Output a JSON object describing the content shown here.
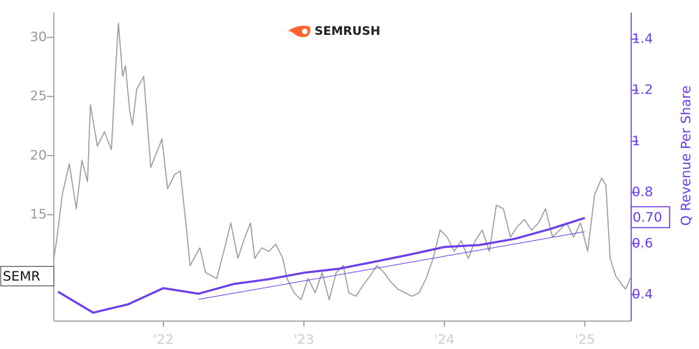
{
  "chart_data": {
    "type": "line",
    "title": "SEMRUSH",
    "y2label": "Q Revenue Per Share",
    "xlim": [
      2021.22,
      2025.33
    ],
    "xticks": [
      {
        "value": 2022,
        "label": "'22"
      },
      {
        "value": 2023,
        "label": "'23"
      },
      {
        "value": 2024,
        "label": "'24"
      },
      {
        "value": 2025,
        "label": "'25"
      }
    ],
    "ylim": [
      6,
      32.1
    ],
    "yticks": [
      15,
      20,
      25,
      30
    ],
    "y2lim": [
      0.296,
      1.504
    ],
    "y2ticks": [
      0.4,
      0.6,
      0.8,
      1.0,
      1.2,
      1.4
    ],
    "series": [
      {
        "name": "SEMR",
        "color": "#999999",
        "width": 1.5,
        "x": [
          2021.22,
          2021.24,
          2021.28,
          2021.33,
          2021.38,
          2021.42,
          2021.46,
          2021.48,
          2021.53,
          2021.58,
          2021.63,
          2021.66,
          2021.68,
          2021.71,
          2021.73,
          2021.76,
          2021.78,
          2021.81,
          2021.86,
          2021.91,
          2021.96,
          2021.99,
          2022.03,
          2022.08,
          2022.12,
          2022.16,
          2022.19,
          2022.26,
          2022.3,
          2022.38,
          2022.43,
          2022.48,
          2022.53,
          2022.58,
          2022.62,
          2022.65,
          2022.7,
          2022.75,
          2022.8,
          2022.85,
          2022.88,
          2022.93,
          2022.98,
          2023.03,
          2023.08,
          2023.13,
          2023.18,
          2023.23,
          2023.28,
          2023.32,
          2023.37,
          2023.42,
          2023.47,
          2023.52,
          2023.57,
          2023.62,
          2023.67,
          2023.72,
          2023.77,
          2023.82,
          2023.87,
          2023.92,
          2023.97,
          2024.02,
          2024.07,
          2024.12,
          2024.17,
          2024.22,
          2024.27,
          2024.32,
          2024.37,
          2024.42,
          2024.47,
          2024.52,
          2024.57,
          2024.62,
          2024.67,
          2024.72,
          2024.77,
          2024.82,
          2024.87,
          2024.92,
          2024.97,
          2025.02,
          2025.07,
          2025.12,
          2025.15,
          2025.18,
          2025.22,
          2025.27,
          2025.29,
          2025.33
        ],
        "values": [
          11.3,
          12.8,
          16.7,
          19.3,
          15.5,
          19.6,
          17.8,
          24.3,
          20.8,
          22.0,
          20.5,
          27.3,
          31.2,
          26.7,
          27.6,
          23.8,
          22.6,
          25.6,
          26.7,
          19.0,
          20.5,
          21.4,
          17.2,
          18.4,
          18.7,
          14.3,
          10.7,
          12.2,
          10.1,
          9.6,
          11.9,
          14.3,
          11.3,
          13.1,
          14.3,
          11.3,
          12.2,
          11.9,
          12.5,
          11.3,
          9.6,
          8.4,
          7.8,
          9.6,
          8.4,
          10.1,
          7.8,
          10.1,
          10.7,
          8.4,
          8.1,
          9.0,
          9.8,
          10.7,
          10.1,
          9.3,
          8.7,
          8.4,
          8.1,
          8.4,
          9.6,
          11.3,
          13.7,
          13.1,
          11.9,
          12.8,
          11.3,
          12.8,
          13.7,
          11.9,
          15.8,
          15.5,
          13.1,
          14.0,
          14.6,
          13.7,
          14.3,
          15.5,
          13.1,
          13.7,
          14.3,
          13.1,
          14.3,
          11.9,
          16.7,
          18.1,
          17.5,
          11.3,
          9.8,
          9.0,
          8.7,
          9.8
        ]
      },
      {
        "color": "#6a3de8",
        "width": 3,
        "axis": "y2",
        "x": [
          2021.25,
          2021.5,
          2021.75,
          2022.0,
          2022.25,
          2022.5,
          2022.75,
          2023.0,
          2023.25,
          2023.5,
          2023.75,
          2024.0,
          2024.25,
          2024.5,
          2024.75,
          2025.0
        ],
        "values": [
          0.411,
          0.329,
          0.362,
          0.425,
          0.403,
          0.441,
          0.46,
          0.485,
          0.501,
          0.528,
          0.556,
          0.586,
          0.594,
          0.618,
          0.656,
          0.7
        ],
        "value_labels": [
          null,
          null,
          null,
          null,
          null,
          null,
          null,
          null,
          null,
          null,
          null,
          null,
          null,
          null,
          null,
          "0.70"
        ]
      },
      {
        "color": "#6a3de8",
        "width": 1,
        "axis": "y2",
        "x": [
          2022.25,
          2025.0
        ],
        "values": [
          0.381,
          0.646
        ]
      }
    ]
  }
}
